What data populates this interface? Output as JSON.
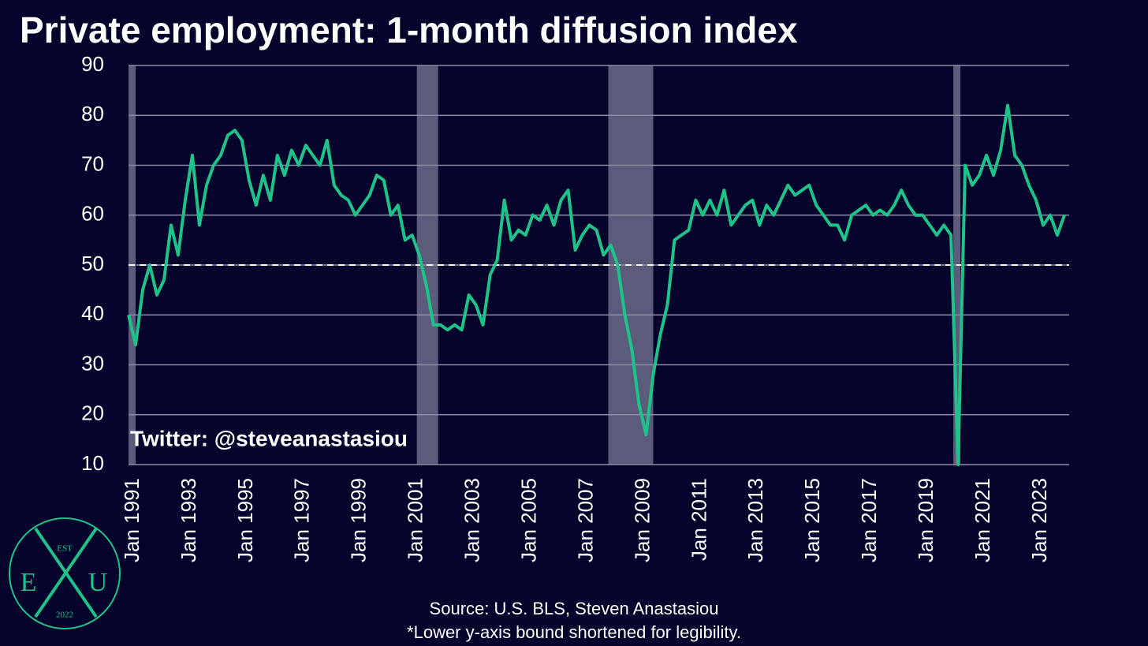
{
  "chart_data": {
    "type": "line",
    "title": "Private employment: 1-month diffusion index",
    "annotation": "Twitter: @steveanastasiou",
    "source": "Source: U.S. BLS, Steven Anastasiou",
    "note": "*Lower y-axis bound shortened for legibility.",
    "logo": {
      "top": "EST",
      "left": "E",
      "right": "U",
      "bottom": "2022"
    },
    "x": [
      "Jan 1991",
      "Apr 1991",
      "Jul 1991",
      "Oct 1991",
      "Jan 1992",
      "Apr 1992",
      "Jul 1992",
      "Oct 1992",
      "Jan 1993",
      "Apr 1993",
      "Jul 1993",
      "Oct 1993",
      "Jan 1994",
      "Apr 1994",
      "Jul 1994",
      "Oct 1994",
      "Jan 1995",
      "Apr 1995",
      "Jul 1995",
      "Oct 1995",
      "Jan 1996",
      "Apr 1996",
      "Jul 1996",
      "Oct 1996",
      "Jan 1997",
      "Apr 1997",
      "Jul 1997",
      "Oct 1997",
      "Jan 1998",
      "Apr 1998",
      "Jul 1998",
      "Oct 1998",
      "Jan 1999",
      "Apr 1999",
      "Jul 1999",
      "Oct 1999",
      "Jan 2000",
      "Apr 2000",
      "Jul 2000",
      "Oct 2000",
      "Jan 2001",
      "Apr 2001",
      "Jul 2001",
      "Oct 2001",
      "Jan 2002",
      "Apr 2002",
      "Jul 2002",
      "Oct 2002",
      "Jan 2003",
      "Apr 2003",
      "Jul 2003",
      "Oct 2003",
      "Jan 2004",
      "Apr 2004",
      "Jul 2004",
      "Oct 2004",
      "Jan 2005",
      "Apr 2005",
      "Jul 2005",
      "Oct 2005",
      "Jan 2006",
      "Apr 2006",
      "Jul 2006",
      "Oct 2006",
      "Jan 2007",
      "Apr 2007",
      "Jul 2007",
      "Oct 2007",
      "Jan 2008",
      "Apr 2008",
      "Jul 2008",
      "Oct 2008",
      "Jan 2009",
      "Apr 2009",
      "Jul 2009",
      "Oct 2009",
      "Jan 2010",
      "Apr 2010",
      "Jul 2010",
      "Oct 2010",
      "Jan 2011",
      "Apr 2011",
      "Jul 2011",
      "Oct 2011",
      "Jan 2012",
      "Apr 2012",
      "Jul 2012",
      "Oct 2012",
      "Jan 2013",
      "Apr 2013",
      "Jul 2013",
      "Oct 2013",
      "Jan 2014",
      "Apr 2014",
      "Jul 2014",
      "Oct 2014",
      "Jan 2015",
      "Apr 2015",
      "Jul 2015",
      "Oct 2015",
      "Jan 2016",
      "Apr 2016",
      "Jul 2016",
      "Oct 2016",
      "Jan 2017",
      "Apr 2017",
      "Jul 2017",
      "Oct 2017",
      "Jan 2018",
      "Apr 2018",
      "Jul 2018",
      "Oct 2018",
      "Jan 2019",
      "Apr 2019",
      "Jul 2019",
      "Oct 2019",
      "Jan 2020",
      "Apr 2020",
      "Jul 2020",
      "Oct 2020",
      "Jan 2021",
      "Apr 2021",
      "Jul 2021",
      "Oct 2021",
      "Jan 2022",
      "Apr 2022",
      "Jul 2022",
      "Oct 2022",
      "Jan 2023",
      "Apr 2023",
      "Jul 2023",
      "Oct 2023",
      "Jan 2024"
    ],
    "series": [
      {
        "name": "Private employment diffusion index",
        "color": "#1ec38a",
        "values": [
          40,
          34,
          45,
          50,
          44,
          47,
          58,
          52,
          63,
          72,
          58,
          66,
          70,
          72,
          76,
          77,
          75,
          67,
          62,
          68,
          63,
          72,
          68,
          73,
          70,
          74,
          72,
          70,
          75,
          66,
          64,
          63,
          60,
          62,
          64,
          68,
          67,
          60,
          62,
          55,
          56,
          52,
          46,
          38,
          38,
          37,
          38,
          37,
          44,
          42,
          38,
          48,
          51,
          63,
          55,
          57,
          56,
          60,
          59,
          62,
          58,
          63,
          65,
          53,
          56,
          58,
          57,
          52,
          54,
          50,
          40,
          33,
          22,
          16,
          28,
          36,
          42,
          55,
          56,
          57,
          63,
          60,
          63,
          60,
          65,
          58,
          60,
          62,
          63,
          58,
          62,
          60,
          63,
          66,
          64,
          65,
          66,
          62,
          60,
          58,
          58,
          55,
          60,
          61,
          62,
          60,
          61,
          60,
          62,
          65,
          62,
          60,
          60,
          58,
          56,
          58,
          56,
          10,
          70,
          66,
          68,
          72,
          68,
          73,
          82,
          72,
          70,
          66,
          63,
          58,
          60,
          56,
          60
        ]
      }
    ],
    "shaded_periods": [
      [
        "Jan 1991",
        "Mar 1991"
      ],
      [
        "Mar 2001",
        "Nov 2001"
      ],
      [
        "Dec 2007",
        "Jun 2009"
      ],
      [
        "Feb 2020",
        "Apr 2020"
      ]
    ],
    "reference_line": 50,
    "xlim": [
      "Jan 1991",
      "Mar 2024"
    ],
    "xticks": [
      "Jan 1991",
      "Jan 1993",
      "Jan 1995",
      "Jan 1997",
      "Jan 1999",
      "Jan 2001",
      "Jan 2003",
      "Jan 2005",
      "Jan 2007",
      "Jan 2009",
      "Jan 2011",
      "Jan 2013",
      "Jan 2015",
      "Jan 2017",
      "Jan 2019",
      "Jan 2021",
      "Jan 2023"
    ],
    "ylim": [
      10,
      90
    ],
    "yticks": [
      10,
      20,
      30,
      40,
      50,
      60,
      70,
      80,
      90
    ],
    "grid": true
  }
}
